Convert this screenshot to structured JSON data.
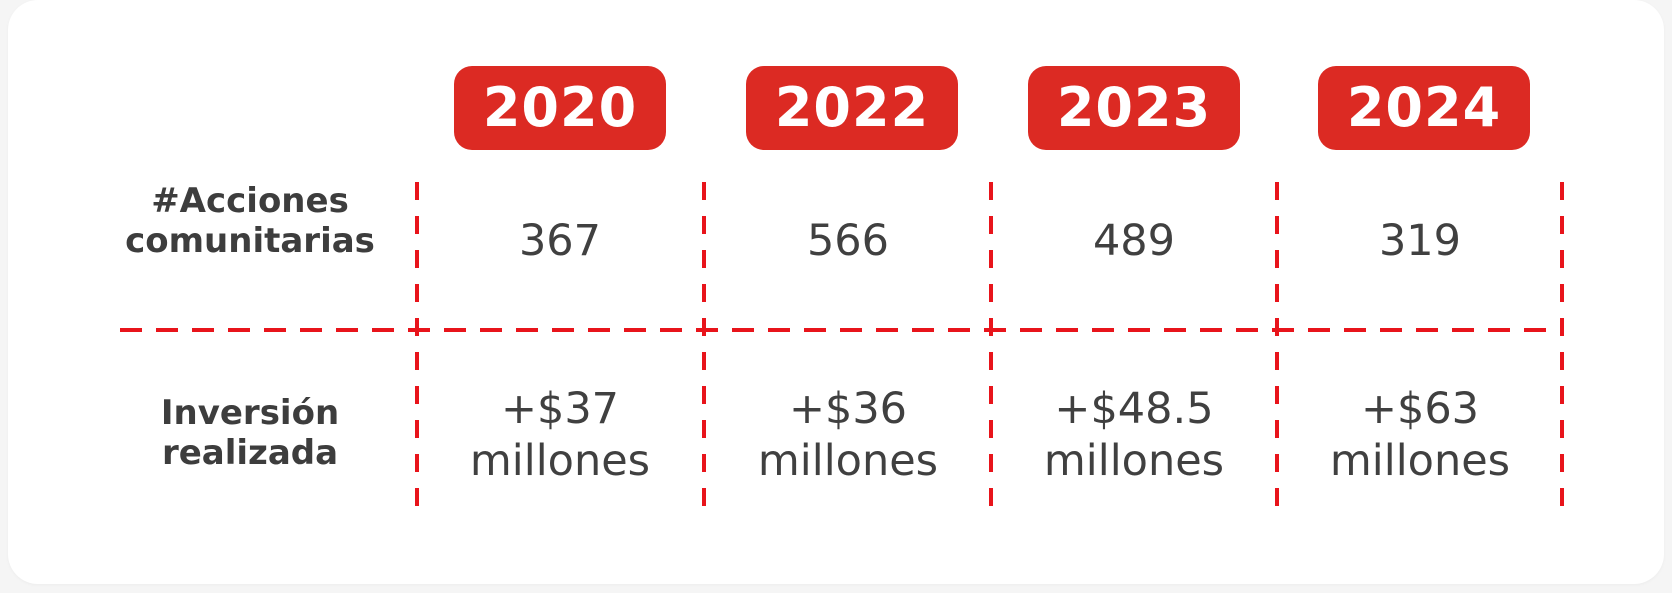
{
  "chart_data": {
    "type": "table",
    "columns": [
      "2020",
      "2022",
      "2023",
      "2024"
    ],
    "rows": [
      {
        "label_lines": [
          "#Acciones",
          "comunitarias"
        ],
        "cells": [
          [
            "367"
          ],
          [
            "566"
          ],
          [
            "489"
          ],
          [
            "319"
          ]
        ]
      },
      {
        "label_lines": [
          "Inversión",
          "realizada"
        ],
        "cells": [
          [
            "+$37",
            "millones"
          ],
          [
            "+$36",
            "millones"
          ],
          [
            "+$48.5",
            "millones"
          ],
          [
            "+$63",
            "millones"
          ]
        ]
      }
    ]
  },
  "colors": {
    "badge": "#dc2a23",
    "divider": "#e8141b",
    "text": "#404040"
  }
}
